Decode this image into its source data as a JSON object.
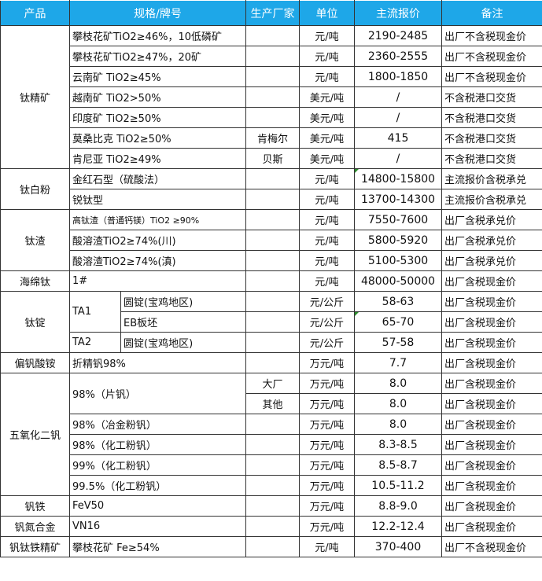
{
  "header": {
    "product": "产品",
    "spec": "规格/牌号",
    "factory": "生产厂家",
    "unit": "单位",
    "price": "主流报价",
    "note": "备注"
  },
  "groups": [
    {
      "product": "钛精矿",
      "items": [
        {
          "spec": "攀枝花矿TiO2≥46%，10低磷矿",
          "factory": "",
          "unit": "元/吨",
          "price": "2190-2485",
          "note": "出厂不含税现金价"
        },
        {
          "spec": "攀枝花矿TiO2≥47%，20矿",
          "factory": "",
          "unit": "元/吨",
          "price": "2360-2555",
          "note": "出厂不含税现金价"
        },
        {
          "spec": "云南矿 TiO2≥45%",
          "factory": "",
          "unit": "元/吨",
          "price": "1800-1850",
          "note": "出厂不含税现金价"
        },
        {
          "spec": "越南矿 TiO2>50%",
          "factory": "",
          "unit": "美元/吨",
          "price": "/",
          "note": "不含税港口交货"
        },
        {
          "spec": "印度矿 TiO2≥50%",
          "factory": "",
          "unit": "美元/吨",
          "price": "/",
          "note": "不含税港口交货"
        },
        {
          "spec": "莫桑比克 TiO2≥50%",
          "factory": "肯梅尔",
          "unit": "美元/吨",
          "price": "415",
          "note": "不含税港口交货"
        },
        {
          "spec": "肯尼亚 TiO2≥49%",
          "factory": "贝斯",
          "unit": "美元/吨",
          "price": "/",
          "note": "不含税港口交货"
        }
      ]
    },
    {
      "product": "钛白粉",
      "items": [
        {
          "spec": "金红石型（硫酸法）",
          "factory": "",
          "unit": "元/吨",
          "price": "14800-15800",
          "note": "主流报价含税承兑",
          "mark": true
        },
        {
          "spec": "锐钛型",
          "factory": "",
          "unit": "元/吨",
          "price": "13700-14300",
          "note": "主流报价含税承兑"
        }
      ]
    },
    {
      "product": "钛渣",
      "items": [
        {
          "spec": "高钛渣（普通钙镁）TiO2 ≥90%",
          "small": true,
          "factory": "",
          "unit": "元/吨",
          "price": "7550-7600",
          "note": "出厂含税承兑价"
        },
        {
          "spec": "酸溶渣TiO2≥74%(川)",
          "factory": "",
          "unit": "元/吨",
          "price": "5800-5920",
          "note": "出厂含税承兑价"
        },
        {
          "spec": "酸溶渣TiO2≥74%(滇)",
          "factory": "",
          "unit": "元/吨",
          "price": "5100-5300",
          "note": "出厂含税承兑价"
        }
      ]
    },
    {
      "product": "海绵钛",
      "items": [
        {
          "spec": "1#",
          "factory": "",
          "unit": "元/吨",
          "price": "48000-50000",
          "note": "出厂含税现金价"
        }
      ]
    },
    {
      "product": "钛锭",
      "items": [
        {
          "spec": "TA1",
          "spec_sub": "圆锭(宝鸡地区)",
          "spec_span": 2,
          "factory": "",
          "unit": "元/公斤",
          "price": "58-63",
          "note": "出厂含税现金价"
        },
        {
          "spec": null,
          "spec_sub": "EB板坯",
          "factory": "",
          "unit": "元/公斤",
          "price": "65-70",
          "note": "出厂含税现金价",
          "mark": true
        },
        {
          "spec": "TA2",
          "spec_sub": "圆锭(宝鸡地区)",
          "factory": "",
          "unit": "元/公斤",
          "price": "57-58",
          "note": "出厂含税现金价"
        }
      ]
    },
    {
      "product": "偏钒酸铵",
      "items": [
        {
          "spec": "折精钒98%",
          "factory": "",
          "unit": "万元/吨",
          "price": "7.7",
          "note": "出厂含税现金价"
        }
      ]
    },
    {
      "product": "五氧化二钒",
      "items": [
        {
          "spec": "98%（片钒）",
          "spec_span": 2,
          "factory": "大厂",
          "unit": "万元/吨",
          "price": "8.0",
          "note": "出厂含税现金价"
        },
        {
          "spec": null,
          "factory": "其他",
          "unit": "万元/吨",
          "price": "8.0",
          "note": "出厂含税现金价"
        },
        {
          "spec": "98%（冶金粉钒）",
          "factory": "",
          "unit": "万元/吨",
          "price": "8.0",
          "note": "出厂含税现金价"
        },
        {
          "spec": "98%（化工粉钒）",
          "factory": "",
          "unit": "万元/吨",
          "price": "8.3-8.5",
          "note": "出厂含税现金价"
        },
        {
          "spec": "99%（化工粉钒）",
          "factory": "",
          "unit": "万元/吨",
          "price": "8.5-8.7",
          "note": "出厂含税现金价"
        },
        {
          "spec": "99.5%（化工粉钒）",
          "factory": "",
          "unit": "万元/吨",
          "price": "10.5-11.2",
          "note": "出厂含税现金价"
        }
      ]
    },
    {
      "product": "钒铁",
      "items": [
        {
          "spec": "FeV50",
          "factory": "",
          "unit": "万元/吨",
          "price": "8.8-9.0",
          "note": "出厂含税现金价"
        }
      ]
    },
    {
      "product": "钒氮合金",
      "items": [
        {
          "spec": "VN16",
          "factory": "",
          "unit": "万元/吨",
          "price": "12.2-12.4",
          "note": "出厂含税现金价"
        }
      ]
    },
    {
      "product": "钒钛铁精矿",
      "items": [
        {
          "spec": "攀枝花矿 Fe≥54%",
          "factory": "",
          "unit": "元/吨",
          "price": "370-400",
          "note": "出厂不含税现金价"
        }
      ]
    }
  ]
}
